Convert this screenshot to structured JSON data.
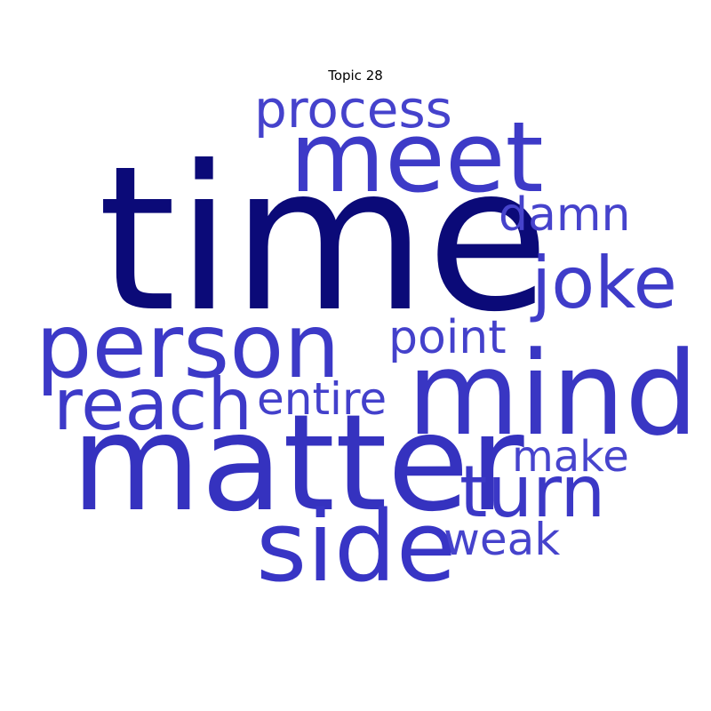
{
  "title": "Topic 28",
  "colors": {
    "dominant": "#0b0a78",
    "strong": "#3a37c6",
    "medium": "#3f3cc8",
    "light": "#4744cc"
  },
  "words": {
    "time": "time",
    "matter": "matter",
    "person": "person",
    "mind": "mind",
    "meet": "meet",
    "side": "side",
    "reach": "reach",
    "joke": "joke",
    "turn": "turn",
    "process": "process",
    "damn": "damn",
    "point": "point",
    "entire": "entire",
    "make": "make",
    "weak": "weak"
  },
  "word_colors": {
    "time": "#0b0a78",
    "matter": "#3532bf",
    "person": "#3c39c7",
    "mind": "#3936c3",
    "meet": "#3d3ac7",
    "side": "#3835c5",
    "reach": "#3d3ac8",
    "joke": "#3f3cc9",
    "turn": "#3b38c6",
    "process": "#4542cc",
    "damn": "#4643cc",
    "point": "#4441cb",
    "entire": "#4340cb",
    "make": "#4744cd",
    "weak": "#4643cc"
  }
}
